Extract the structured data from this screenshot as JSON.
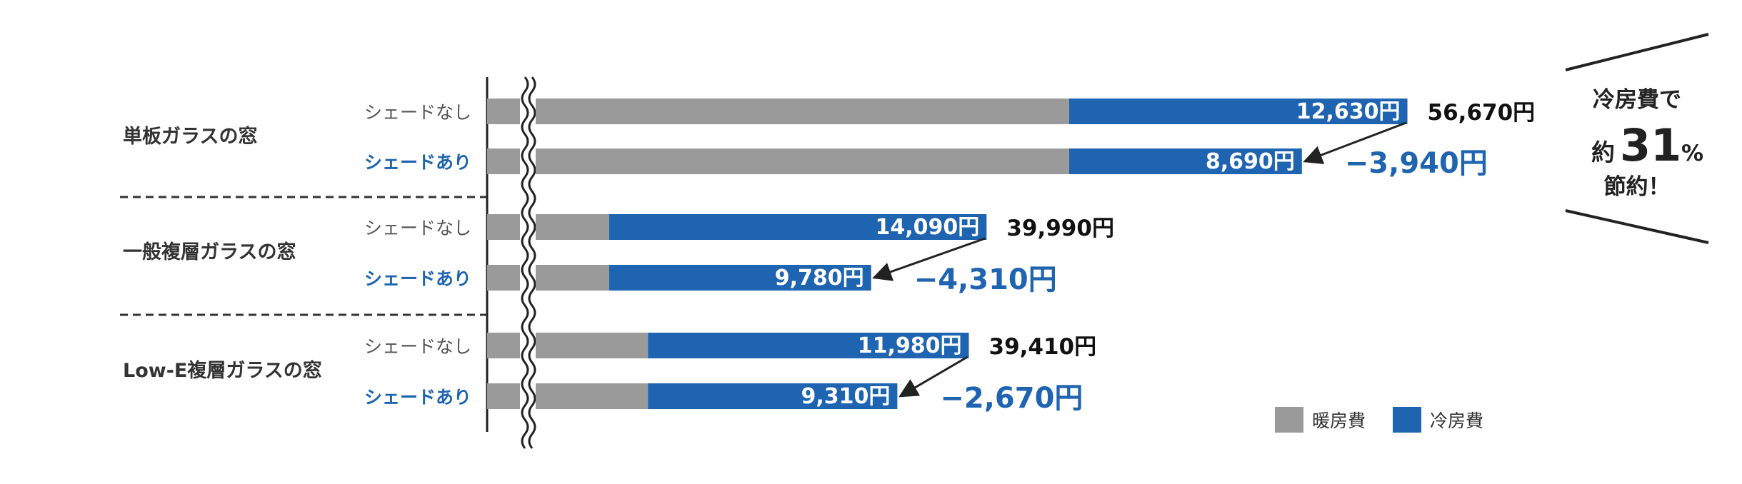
{
  "chart_data": {
    "type": "bar",
    "orientation": "horizontal",
    "stacked": true,
    "axis_break": true,
    "groups": [
      {
        "name": "単板ガラスの窓",
        "bars": [
          {
            "label": "シェードなし",
            "heating": 44040,
            "cooling": 12630,
            "cooling_label": "12,630円",
            "total_label": "56,670円"
          },
          {
            "label": "シェードあり",
            "heating": 44040,
            "cooling": 8690,
            "cooling_label": "8,690円",
            "diff_label": "−3,940円"
          }
        ]
      },
      {
        "name": "一般複層ガラスの窓",
        "bars": [
          {
            "label": "シェードなし",
            "heating": 25900,
            "cooling": 14090,
            "cooling_label": "14,090円",
            "total_label": "39,990円"
          },
          {
            "label": "シェードあり",
            "heating": 25900,
            "cooling": 9780,
            "cooling_label": "9,780円",
            "diff_label": "−4,310円"
          }
        ]
      },
      {
        "name": "Low-E複層ガラスの窓",
        "bars": [
          {
            "label": "シェードなし",
            "heating": 27430,
            "cooling": 11980,
            "cooling_label": "11,980円",
            "total_label": "39,410円"
          },
          {
            "label": "シェードあり",
            "heating": 27430,
            "cooling": 9310,
            "cooling_label": "9,310円",
            "diff_label": "−2,670円"
          }
        ]
      }
    ],
    "legend": [
      {
        "name": "暖房費",
        "color": "#9a9a9a"
      },
      {
        "name": "冷房費",
        "color": "#1e64b0"
      }
    ],
    "legend_position": "bottom-right",
    "callout": {
      "line1": "冷房費で",
      "prefix": "約",
      "value": "31",
      "unit": "%",
      "line3": "節約！"
    }
  }
}
